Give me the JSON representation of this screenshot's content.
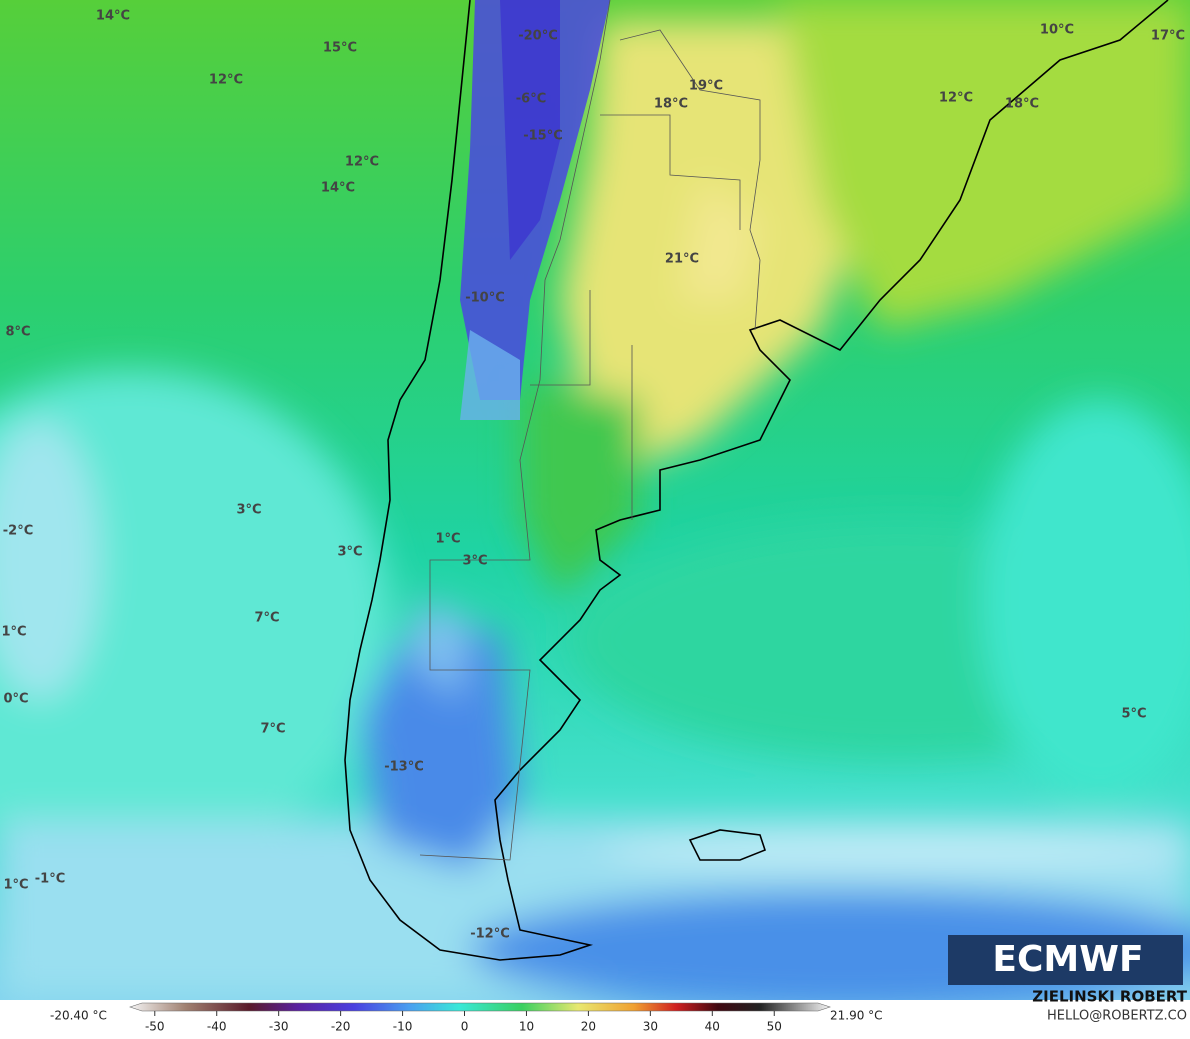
{
  "map": {
    "labels": [
      "14°C",
      "15°C",
      "12°C",
      "12°C",
      "14°C",
      "8°C",
      "-20°C",
      "-6°C",
      "-15°C",
      "19°C",
      "18°C",
      "10°C",
      "17°C",
      "12°C",
      "18°C",
      "21°C",
      "-10°C",
      "3°C",
      "-2°C",
      "1°C",
      "3°C",
      "3°C",
      "7°C",
      "1°C",
      "0°C",
      "7°C",
      "5°C",
      "-13°C",
      "1°C",
      "-1°C",
      "-12°C"
    ],
    "logo": "ECMWF"
  },
  "colorbar": {
    "min_label": "-20.40 °C",
    "max_label": "21.90 °C",
    "lim": [
      -54,
      59
    ],
    "ticks": [
      -50,
      -40,
      -30,
      -20,
      -10,
      0,
      10,
      20,
      30,
      40,
      50
    ]
  },
  "credit": {
    "author": "ZIELINSKI ROBERT",
    "email": "HELLO@ROBERTZ.CO"
  }
}
